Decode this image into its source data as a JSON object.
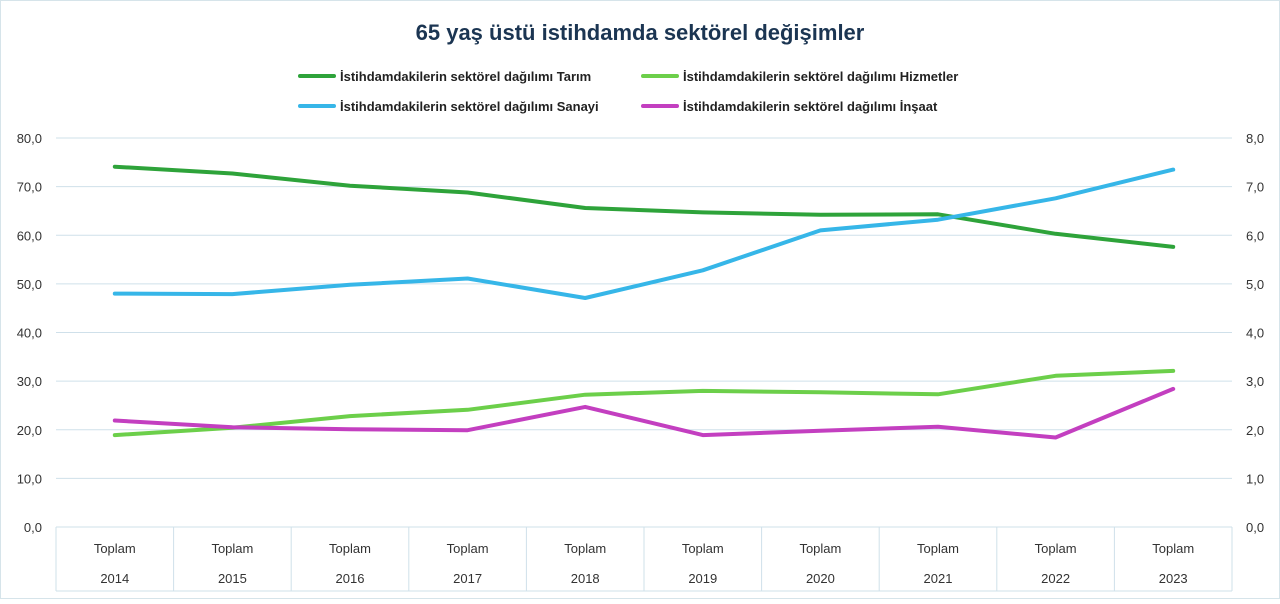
{
  "chart_data": {
    "type": "line",
    "title": "65 yaş üstü istihdamda sektörel değişimler",
    "categories": [
      {
        "top": "Toplam",
        "bottom": "2014"
      },
      {
        "top": "Toplam",
        "bottom": "2015"
      },
      {
        "top": "Toplam",
        "bottom": "2016"
      },
      {
        "top": "Toplam",
        "bottom": "2017"
      },
      {
        "top": "Toplam",
        "bottom": "2018"
      },
      {
        "top": "Toplam",
        "bottom": "2019"
      },
      {
        "top": "Toplam",
        "bottom": "2020"
      },
      {
        "top": "Toplam",
        "bottom": "2021"
      },
      {
        "top": "Toplam",
        "bottom": "2022"
      },
      {
        "top": "Toplam",
        "bottom": "2023"
      }
    ],
    "y_left": {
      "min": 0,
      "max": 80,
      "step": 10,
      "ticks": [
        "0,0",
        "10,0",
        "20,0",
        "30,0",
        "40,0",
        "50,0",
        "60,0",
        "70,0",
        "80,0"
      ]
    },
    "y_right": {
      "min": 0,
      "max": 8,
      "step": 1,
      "ticks": [
        "0,0",
        "1,0",
        "2,0",
        "3,0",
        "4,0",
        "5,0",
        "6,0",
        "7,0",
        "8,0"
      ]
    },
    "grid": true,
    "legend_position": "top-center",
    "series": [
      {
        "name": "İstihdamdakilerin sektörel dağılımı  Tarım",
        "axis": "left",
        "color": "#2ea33a",
        "values": [
          74.1,
          72.7,
          70.2,
          68.8,
          65.6,
          64.7,
          64.2,
          64.3,
          60.3,
          57.6
        ]
      },
      {
        "name": "İstihdamdakilerin sektörel dağılımı  Hizmetler",
        "axis": "left",
        "color": "#6ccf4a",
        "values": [
          18.9,
          20.4,
          22.8,
          24.1,
          27.2,
          28.0,
          27.7,
          27.3,
          31.1,
          32.1
        ]
      },
      {
        "name": "İstihdamdakilerin sektörel dağılımı  Sanayi",
        "axis": "right",
        "color": "#36b6e8",
        "values": [
          4.8,
          4.79,
          4.98,
          5.11,
          4.71,
          5.28,
          6.1,
          6.32,
          6.76,
          7.35
        ]
      },
      {
        "name": "İstihdamdakilerin sektörel dağılımı  İnşaat",
        "axis": "right",
        "color": "#c33fc0",
        "values": [
          2.19,
          2.05,
          2.01,
          1.99,
          2.47,
          1.89,
          1.98,
          2.06,
          1.84,
          2.84
        ]
      }
    ]
  }
}
